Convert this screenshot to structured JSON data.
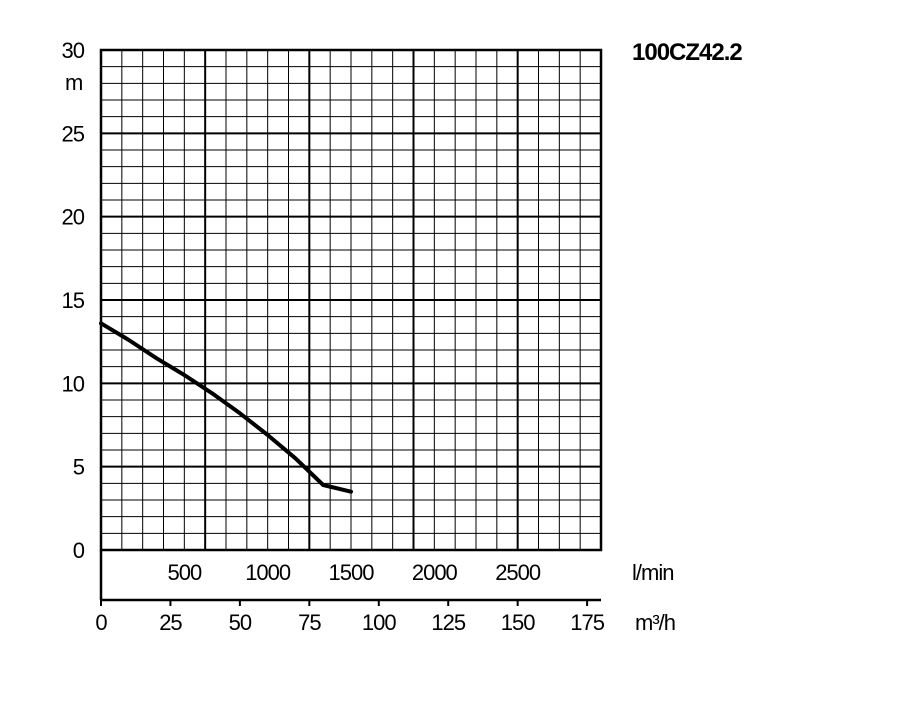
{
  "chart_data": {
    "type": "line",
    "title": "100CZ42.2",
    "ylabel": "m",
    "xlabel_lmin": "l/min",
    "xlabel_m3h": "m³/h",
    "ylim": [
      0,
      30
    ],
    "xlim_m3h": [
      0,
      180
    ],
    "grid": true,
    "y_ticks": [
      "0",
      "5",
      "10",
      "15",
      "20",
      "25",
      "30"
    ],
    "x_ticks_lmin": [
      "500",
      "1000",
      "1500",
      "2000",
      "2500"
    ],
    "x_ticks_m3h": [
      "0",
      "25",
      "50",
      "75",
      "100",
      "125",
      "150",
      "175"
    ],
    "series": [
      {
        "x": [
          0,
          10,
          20,
          30,
          40,
          50,
          60,
          70,
          80,
          90
        ],
        "y": [
          13.6,
          12.6,
          11.5,
          10.5,
          9.4,
          8.2,
          6.9,
          5.5,
          3.9,
          3.5
        ]
      }
    ]
  }
}
